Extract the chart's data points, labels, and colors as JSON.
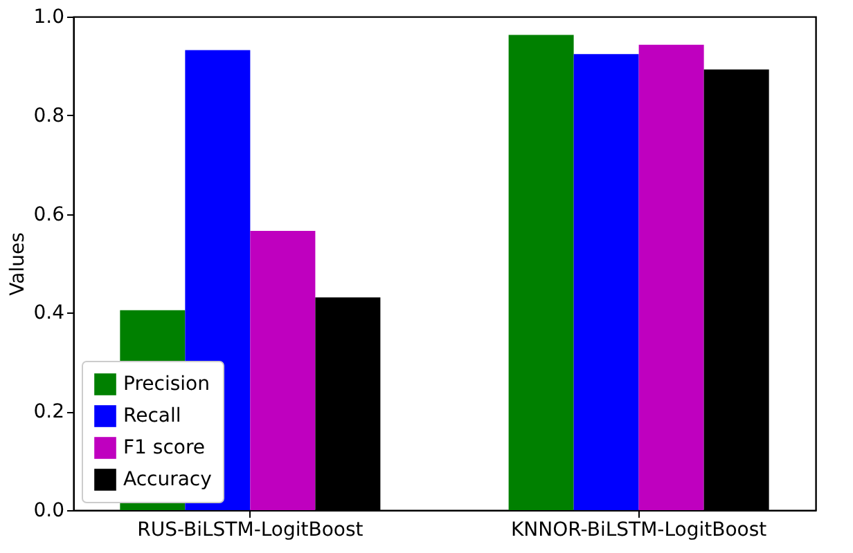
{
  "chart_data": {
    "type": "bar",
    "ylabel": "Values",
    "categories": [
      "RUS-BiLSTM-LogitBoost",
      "KNNOR-BiLSTM-LogitBoost"
    ],
    "series": [
      {
        "name": "Precision",
        "color": "#008000",
        "values": [
          0.405,
          0.963
        ]
      },
      {
        "name": "Recall",
        "color": "#0000ff",
        "values": [
          0.932,
          0.924
        ]
      },
      {
        "name": "F1 score",
        "color": "#bf00bf",
        "values": [
          0.566,
          0.943
        ]
      },
      {
        "name": "Accuracy",
        "color": "#000000",
        "values": [
          0.431,
          0.893
        ]
      }
    ],
    "ylim": [
      0,
      1
    ],
    "yticks": [
      {
        "value": 0,
        "label": "0.0"
      },
      {
        "value": 0.2,
        "label": "0.2"
      },
      {
        "value": 0.4,
        "label": "0.4"
      },
      {
        "value": 0.6,
        "label": "0.6"
      },
      {
        "value": 0.8,
        "label": "0.8"
      },
      {
        "value": 1,
        "label": "1.0"
      }
    ],
    "grid": false,
    "legend": "bottom left"
  }
}
